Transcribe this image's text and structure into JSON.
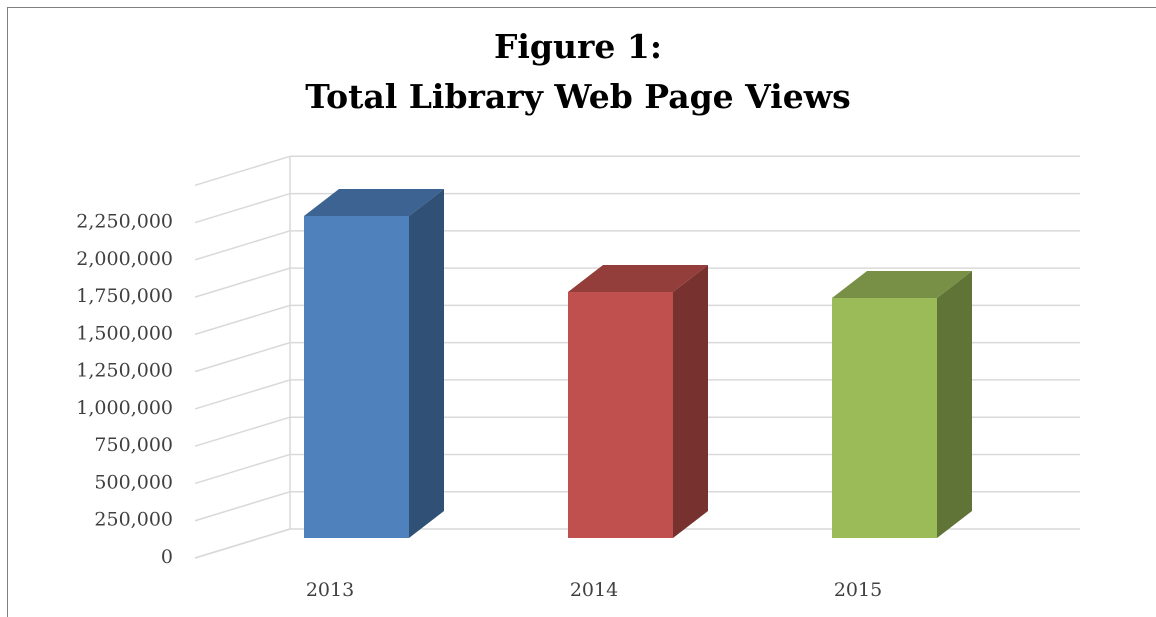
{
  "chart_data": {
    "type": "bar3d",
    "title": [
      "Figure 1:",
      "Total Library Web Page Views"
    ],
    "categories": [
      "2013",
      "2014",
      "2015"
    ],
    "values": [
      2160000,
      1650000,
      1610000
    ],
    "colors": [
      "#4f81bd",
      "#c0504d",
      "#9bbb59"
    ],
    "ylim": [
      0,
      2500000
    ],
    "yticks": [
      0,
      {
        "value": 250000,
        "label": "250,000"
      },
      {
        "value": 500000,
        "label": "500,000"
      },
      {
        "value": 750000,
        "label": "750,000"
      },
      {
        "value": 1000000,
        "label": "1,000,000"
      },
      {
        "value": 1250000,
        "label": "1,250,000"
      },
      {
        "value": 1500000,
        "label": "1,500,000"
      },
      {
        "value": 1750000,
        "label": "1,750,000"
      },
      {
        "value": 2000000,
        "label": "2,000,000"
      },
      {
        "value": 2250000,
        "label": "2,250,000"
      }
    ],
    "grid": true
  }
}
